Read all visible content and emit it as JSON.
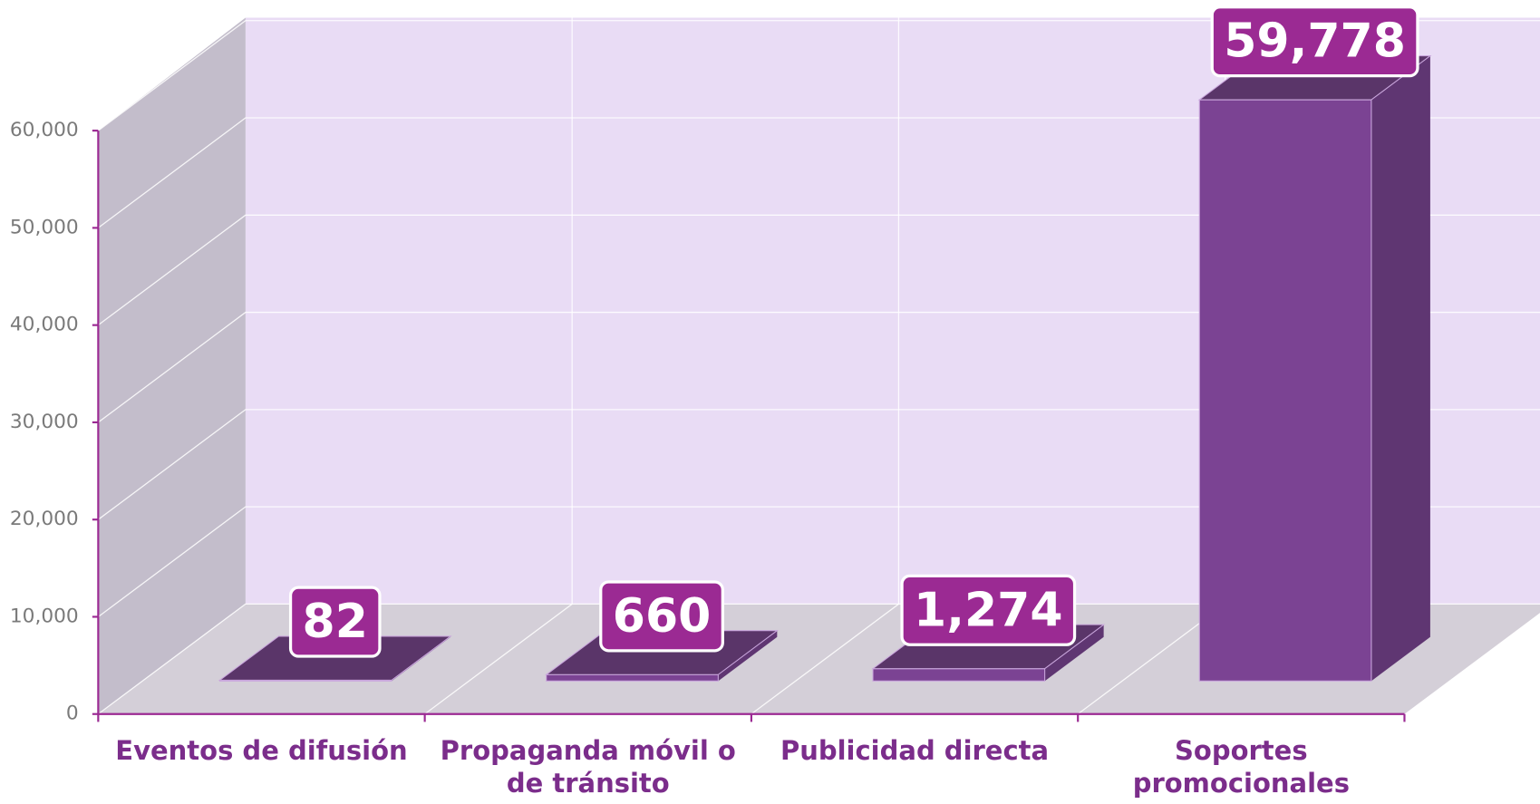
{
  "chart_data": {
    "type": "bar3d",
    "categories": [
      "Eventos de difusión",
      "Propaganda móvil o de tránsito",
      "Publicidad directa",
      "Soportes promocionales"
    ],
    "values": [
      82,
      660,
      1274,
      59778
    ],
    "value_labels": [
      "82",
      "660",
      "1,274",
      "59,778"
    ],
    "color": "#7b4393",
    "ylim": [
      0,
      60000
    ],
    "yticks": [
      0,
      {
        "value": 10000,
        "label": "10,000"
      },
      {
        "value": 20000,
        "label": "20,000"
      },
      {
        "value": 30000,
        "label": "30,000"
      },
      {
        "value": 40000,
        "label": "40,000"
      },
      {
        "value": 50000,
        "label": "50,000"
      },
      {
        "value": 60000,
        "label": "60,000"
      }
    ],
    "grid": true
  }
}
